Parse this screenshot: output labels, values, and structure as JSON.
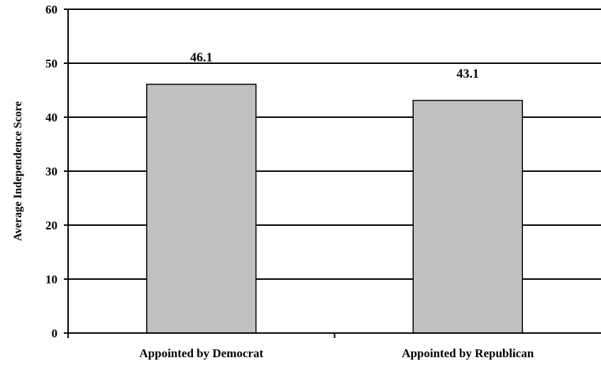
{
  "chart_data": {
    "type": "bar",
    "categories": [
      "Appointed by Democrat",
      "Appointed by Republican"
    ],
    "values": [
      46.1,
      43.1
    ],
    "data_labels": [
      "46.1",
      "43.1"
    ],
    "title": "",
    "xlabel": "",
    "ylabel": "Average Independence Score",
    "ylim": [
      0,
      60
    ],
    "yticks": [
      0,
      10,
      20,
      30,
      40,
      50,
      60
    ],
    "grid": true,
    "legend": "none",
    "bar_color": "#c0c0c0",
    "bar_edge_color": "#000000"
  }
}
